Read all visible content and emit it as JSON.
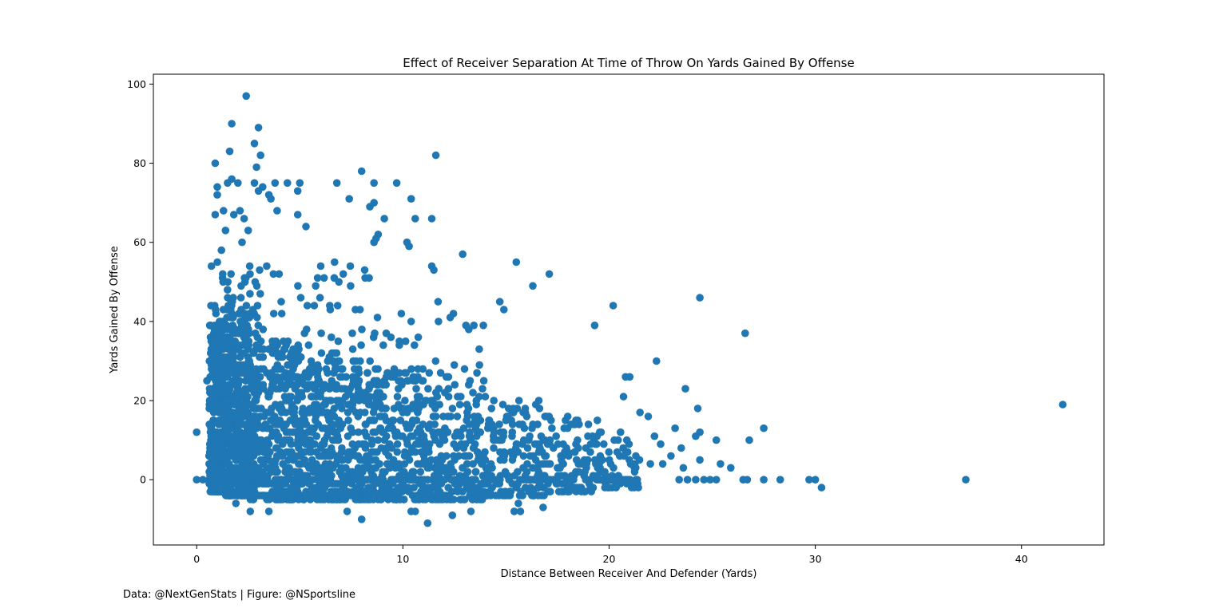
{
  "footer": "Data: @NextGenStats | Figure: @NSportsline",
  "chart_data": {
    "type": "scatter",
    "title": "Effect of Receiver Separation At Time of Throw On Yards Gained By Offense",
    "xlabel": "Distance Between Receiver And Defender (Yards)",
    "ylabel": "Yards Gained By Offense",
    "xlim": [
      -2.1,
      44.0
    ],
    "ylim": [
      -16.5,
      102.5
    ],
    "xticks": [
      0,
      10,
      20,
      30,
      40
    ],
    "yticks": [
      0,
      20,
      40,
      60,
      80,
      100
    ],
    "grid": false,
    "marker_color": "#1f77b4",
    "points": [
      [
        0.0,
        12
      ],
      [
        0.0,
        0
      ],
      [
        0.3,
        0
      ],
      [
        0.5,
        25
      ],
      [
        0.6,
        6
      ],
      [
        0.7,
        0
      ],
      [
        0.8,
        15
      ],
      [
        0.9,
        80
      ],
      [
        1.0,
        74
      ],
      [
        1.0,
        72
      ],
      [
        0.9,
        67
      ],
      [
        1.2,
        58
      ],
      [
        1.3,
        68
      ],
      [
        1.4,
        63
      ],
      [
        1.5,
        75
      ],
      [
        1.7,
        76
      ],
      [
        1.8,
        67
      ],
      [
        2.0,
        75
      ],
      [
        2.1,
        68
      ],
      [
        1.7,
        90
      ],
      [
        1.6,
        83
      ],
      [
        2.4,
        97
      ],
      [
        2.8,
        85
      ],
      [
        3.0,
        89
      ],
      [
        3.1,
        82
      ],
      [
        2.9,
        79
      ],
      [
        2.8,
        75
      ],
      [
        3.2,
        74
      ],
      [
        3.0,
        73
      ],
      [
        3.5,
        72
      ],
      [
        3.6,
        71
      ],
      [
        3.8,
        75
      ],
      [
        3.9,
        68
      ],
      [
        4.4,
        75
      ],
      [
        4.9,
        73
      ],
      [
        5.0,
        75
      ],
      [
        4.9,
        67
      ],
      [
        5.3,
        64
      ],
      [
        2.3,
        66
      ],
      [
        2.2,
        60
      ],
      [
        2.5,
        63
      ],
      [
        6.8,
        75
      ],
      [
        7.4,
        71
      ],
      [
        8.0,
        78
      ],
      [
        8.6,
        75
      ],
      [
        8.4,
        69
      ],
      [
        8.6,
        70
      ],
      [
        9.7,
        75
      ],
      [
        10.4,
        71
      ],
      [
        9.1,
        66
      ],
      [
        10.6,
        66
      ],
      [
        11.4,
        66
      ],
      [
        11.6,
        82
      ],
      [
        10.2,
        60
      ],
      [
        10.3,
        59
      ],
      [
        8.8,
        62
      ],
      [
        8.7,
        61
      ],
      [
        8.6,
        60
      ],
      [
        12.9,
        57
      ],
      [
        11.4,
        54
      ],
      [
        11.5,
        53
      ],
      [
        15.5,
        55
      ],
      [
        16.3,
        49
      ],
      [
        17.1,
        52
      ],
      [
        14.7,
        45
      ],
      [
        14.9,
        43
      ],
      [
        19.3,
        39
      ],
      [
        20.2,
        44
      ],
      [
        24.4,
        46
      ],
      [
        26.6,
        37
      ],
      [
        22.3,
        30
      ],
      [
        23.7,
        23
      ],
      [
        24.3,
        18
      ],
      [
        27.5,
        13
      ],
      [
        26.8,
        10
      ],
      [
        25.2,
        10
      ],
      [
        25.4,
        4
      ],
      [
        25.9,
        3
      ],
      [
        24.4,
        12
      ],
      [
        24.2,
        11
      ],
      [
        24.4,
        5
      ],
      [
        23.6,
        3
      ],
      [
        21.0,
        26
      ],
      [
        20.8,
        26
      ],
      [
        20.7,
        21
      ],
      [
        21.9,
        16
      ],
      [
        21.5,
        17
      ],
      [
        22.2,
        11
      ],
      [
        22.5,
        9
      ],
      [
        23.0,
        6
      ],
      [
        23.2,
        13
      ],
      [
        23.5,
        8
      ],
      [
        22.0,
        4
      ],
      [
        22.6,
        4
      ],
      [
        42.0,
        19
      ],
      [
        37.3,
        0
      ],
      [
        30.3,
        -2
      ],
      [
        29.7,
        0
      ],
      [
        30.0,
        0
      ],
      [
        28.3,
        0
      ],
      [
        27.5,
        0
      ],
      [
        26.5,
        0
      ],
      [
        26.7,
        0
      ],
      [
        25.2,
        0
      ],
      [
        24.9,
        0
      ],
      [
        24.6,
        0
      ],
      [
        24.2,
        0
      ],
      [
        23.8,
        0
      ],
      [
        23.4,
        0
      ],
      [
        11.2,
        -11
      ],
      [
        8.0,
        -10
      ],
      [
        12.4,
        -9
      ],
      [
        10.4,
        -8
      ],
      [
        10.6,
        -8
      ],
      [
        7.3,
        -8
      ],
      [
        3.5,
        -8
      ],
      [
        2.6,
        -8
      ],
      [
        1.9,
        -6
      ],
      [
        15.7,
        -8
      ],
      [
        15.4,
        -8
      ],
      [
        16.8,
        -7
      ],
      [
        13.3,
        -8
      ],
      [
        15.6,
        -6
      ]
    ],
    "clusters": [
      {
        "x": [
          0.6,
          1.4
        ],
        "y": [
          -3,
          40
        ],
        "n": 320
      },
      {
        "x": [
          1.4,
          2.6
        ],
        "y": [
          -4,
          45
        ],
        "n": 380
      },
      {
        "x": [
          0.6,
          3.0
        ],
        "y": [
          0,
          55
        ],
        "n": 200
      },
      {
        "x": [
          2.6,
          5.0
        ],
        "y": [
          -5,
          35
        ],
        "n": 380
      },
      {
        "x": [
          5.0,
          8.0
        ],
        "y": [
          -5,
          30
        ],
        "n": 380
      },
      {
        "x": [
          8.0,
          11.0
        ],
        "y": [
          -5,
          28
        ],
        "n": 320
      },
      {
        "x": [
          11.0,
          14.0
        ],
        "y": [
          -5,
          24
        ],
        "n": 240
      },
      {
        "x": [
          14.0,
          17.0
        ],
        "y": [
          -4,
          20
        ],
        "n": 170
      },
      {
        "x": [
          17.0,
          19.5
        ],
        "y": [
          -3,
          16
        ],
        "n": 110
      },
      {
        "x": [
          19.5,
          21.5
        ],
        "y": [
          -2,
          12
        ],
        "n": 60
      },
      {
        "x": [
          3.0,
          9.0
        ],
        "y": [
          30,
          55
        ],
        "n": 70
      },
      {
        "x": [
          9.0,
          14.0
        ],
        "y": [
          24,
          45
        ],
        "n": 40
      },
      {
        "x": [
          0.6,
          21.0
        ],
        "y": [
          0,
          0
        ],
        "n": 140
      }
    ]
  }
}
